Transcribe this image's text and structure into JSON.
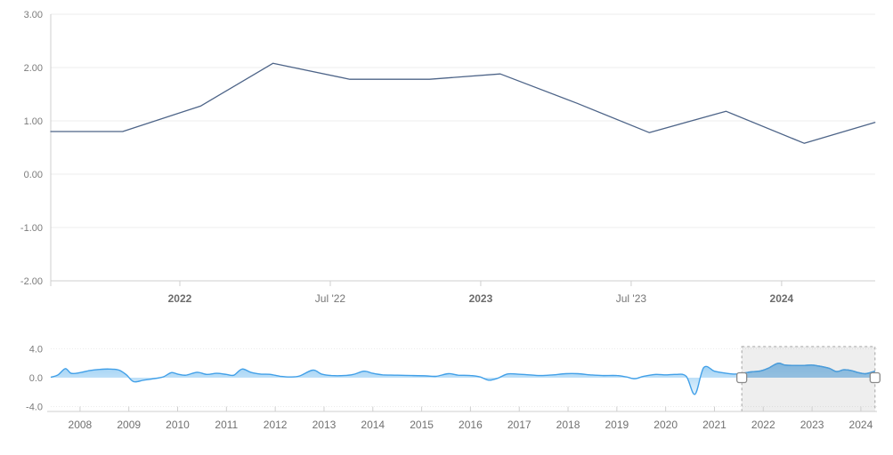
{
  "chart_title": "",
  "colors": {
    "background": "#ffffff",
    "main_line": "#4d6488",
    "gridline": "#ececec",
    "axis_line": "#cfcfcf",
    "axis_label": "#7b7b7b",
    "nav_line": "#42a0e8",
    "nav_fill_top": "#8ec9f2",
    "nav_fill_bottom": "#d7ecfb",
    "nav_selected_fill": "#5ea7e0",
    "selection_mask": "#8a8a8a",
    "selection_border": "#a3a3a3",
    "handle_fill": "#ffffff",
    "handle_border": "#8a8a8a"
  },
  "chart_data": [
    {
      "id": "main",
      "type": "line",
      "title": "",
      "xlabel": "",
      "ylabel": "",
      "grid": "horizontal",
      "legend": "none",
      "xlim": [
        2021.571,
        2024.311
      ],
      "ylim": [
        -2,
        3
      ],
      "x": [
        2021.571,
        2021.81,
        2022.07,
        2022.31,
        2022.565,
        2022.83,
        2023.065,
        2023.32,
        2023.56,
        2023.815,
        2024.075,
        2024.31
      ],
      "values": [
        0.8,
        0.8,
        1.28,
        2.08,
        1.78,
        1.78,
        1.88,
        1.33,
        0.78,
        1.18,
        0.58,
        0.97
      ],
      "y_ticks": [
        {
          "label": "3.00",
          "v": 3
        },
        {
          "label": "2.00",
          "v": 2
        },
        {
          "label": "1.00",
          "v": 1
        },
        {
          "label": "0.00",
          "v": 0
        },
        {
          "label": "-1.00",
          "v": -1
        },
        {
          "label": "-2.00",
          "v": -2
        }
      ],
      "x_ticks": [
        {
          "label": "2022",
          "t": 2022.0,
          "bold": true
        },
        {
          "label": "Jul '22",
          "t": 2022.5,
          "bold": false
        },
        {
          "label": "2023",
          "t": 2023.0,
          "bold": true
        },
        {
          "label": "Jul '23",
          "t": 2023.5,
          "bold": false
        },
        {
          "label": "2024",
          "t": 2024.0,
          "bold": true
        }
      ]
    },
    {
      "id": "navigator",
      "type": "area",
      "title": "",
      "xlabel": "",
      "ylabel": "",
      "grid": "horizontal-dotted",
      "legend": "none",
      "xlim": [
        2007.4,
        2024.33
      ],
      "ylim": [
        -4.7,
        4.7
      ],
      "baseline": 0,
      "x": [
        2007.4,
        2007.55,
        2007.7,
        2007.82,
        2008.0,
        2008.2,
        2008.4,
        2008.6,
        2008.8,
        2008.95,
        2009.1,
        2009.3,
        2009.5,
        2009.7,
        2009.87,
        2010.0,
        2010.17,
        2010.4,
        2010.6,
        2010.8,
        2011.0,
        2011.15,
        2011.32,
        2011.5,
        2011.7,
        2011.9,
        2012.1,
        2012.3,
        2012.5,
        2012.77,
        2012.95,
        2013.15,
        2013.4,
        2013.6,
        2013.82,
        2014.0,
        2014.2,
        2014.5,
        2014.8,
        2015.1,
        2015.3,
        2015.55,
        2015.75,
        2016.0,
        2016.2,
        2016.37,
        2016.55,
        2016.75,
        2016.95,
        2017.2,
        2017.45,
        2017.7,
        2017.95,
        2018.2,
        2018.45,
        2018.7,
        2019.0,
        2019.2,
        2019.37,
        2019.55,
        2019.8,
        2020.0,
        2020.2,
        2020.42,
        2020.6,
        2020.78,
        2021.0,
        2021.2,
        2021.4,
        2021.56,
        2021.75,
        2021.95,
        2022.1,
        2022.3,
        2022.45,
        2022.65,
        2022.85,
        2023.0,
        2023.15,
        2023.35,
        2023.5,
        2023.65,
        2023.8,
        2023.95,
        2024.1,
        2024.29
      ],
      "values": [
        0.05,
        0.4,
        1.25,
        0.6,
        0.7,
        1.0,
        1.15,
        1.2,
        1.05,
        0.4,
        -0.55,
        -0.35,
        -0.15,
        0.1,
        0.7,
        0.5,
        0.35,
        0.75,
        0.45,
        0.6,
        0.45,
        0.35,
        1.2,
        0.75,
        0.5,
        0.45,
        0.2,
        0.1,
        0.25,
        1.05,
        0.5,
        0.3,
        0.3,
        0.45,
        0.9,
        0.6,
        0.4,
        0.35,
        0.3,
        0.25,
        0.2,
        0.55,
        0.35,
        0.3,
        0.1,
        -0.35,
        -0.1,
        0.5,
        0.5,
        0.4,
        0.3,
        0.4,
        0.55,
        0.55,
        0.4,
        0.3,
        0.3,
        0.1,
        -0.15,
        0.2,
        0.45,
        0.4,
        0.45,
        0.2,
        -2.3,
        1.4,
        0.9,
        0.65,
        0.5,
        0.6,
        0.8,
        0.95,
        1.3,
        2.0,
        1.75,
        1.7,
        1.7,
        1.75,
        1.6,
        1.3,
        0.85,
        1.1,
        1.0,
        0.7,
        0.55,
        0.9
      ],
      "y_ticks": [
        {
          "label": "4.0",
          "v": 4
        },
        {
          "label": "0.0",
          "v": 0
        },
        {
          "label": "-4.0",
          "v": -4
        }
      ],
      "x_ticks": [
        {
          "label": "2008",
          "t": 2008
        },
        {
          "label": "2009",
          "t": 2009
        },
        {
          "label": "2010",
          "t": 2010
        },
        {
          "label": "2011",
          "t": 2011
        },
        {
          "label": "2012",
          "t": 2012
        },
        {
          "label": "2013",
          "t": 2013
        },
        {
          "label": "2014",
          "t": 2014
        },
        {
          "label": "2015",
          "t": 2015
        },
        {
          "label": "2016",
          "t": 2016
        },
        {
          "label": "2017",
          "t": 2017
        },
        {
          "label": "2018",
          "t": 2018
        },
        {
          "label": "2019",
          "t": 2019
        },
        {
          "label": "2020",
          "t": 2020
        },
        {
          "label": "2021",
          "t": 2021
        },
        {
          "label": "2022",
          "t": 2022
        },
        {
          "label": "2023",
          "t": 2023
        },
        {
          "label": "2024",
          "t": 2024
        }
      ],
      "selection": {
        "start": 2021.56,
        "end": 2024.29
      }
    }
  ]
}
